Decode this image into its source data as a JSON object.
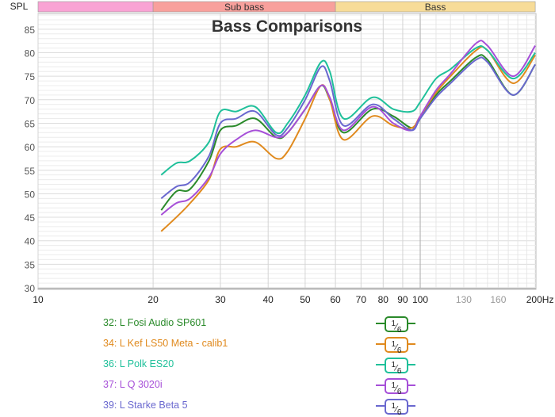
{
  "chart_data": {
    "type": "line",
    "title": "Bass Comparisons",
    "ylabel": "SPL",
    "xunit": "Hz",
    "xscale": "log",
    "xlim": [
      10,
      200
    ],
    "ylim": [
      30,
      88
    ],
    "grid": true,
    "x_ticks": [
      {
        "v": 10,
        "label": "10",
        "muted": false
      },
      {
        "v": 20,
        "label": "20",
        "muted": false
      },
      {
        "v": 30,
        "label": "30",
        "muted": false
      },
      {
        "v": 40,
        "label": "40",
        "muted": false
      },
      {
        "v": 50,
        "label": "50",
        "muted": false
      },
      {
        "v": 60,
        "label": "60",
        "muted": false
      },
      {
        "v": 70,
        "label": "70",
        "muted": false
      },
      {
        "v": 80,
        "label": "80",
        "muted": false
      },
      {
        "v": 90,
        "label": "90",
        "muted": false
      },
      {
        "v": 100,
        "label": "100",
        "muted": false
      },
      {
        "v": 130,
        "label": "130",
        "muted": true
      },
      {
        "v": 160,
        "label": "160",
        "muted": true
      },
      {
        "v": 200,
        "label": "200Hz",
        "muted": false
      }
    ],
    "y_ticks": [
      30,
      35,
      40,
      45,
      50,
      55,
      60,
      65,
      70,
      75,
      80,
      85
    ],
    "bands": [
      {
        "label": "",
        "from": 10,
        "to": 20,
        "color": "#f9a3d4"
      },
      {
        "label": "Sub bass",
        "from": 20,
        "to": 60,
        "color": "#f8a09c"
      },
      {
        "label": "Bass",
        "from": 60,
        "to": 200,
        "color": "#f7dc98"
      }
    ],
    "x": [
      21,
      23,
      25,
      28,
      30,
      33,
      37,
      42,
      45,
      50,
      55,
      58,
      63,
      75,
      85,
      95,
      100,
      110,
      120,
      140,
      150,
      175,
      200
    ],
    "series": [
      {
        "name": "32: L Fosi Audio SP601",
        "color": "#2a8a2a",
        "smoothing": "1/6",
        "values": [
          46.5,
          50.5,
          51,
          57,
          63.5,
          64.5,
          66,
          62,
          63,
          68,
          73,
          70,
          63,
          68,
          66.5,
          64,
          66,
          71,
          74,
          79,
          78.5,
          71,
          77.5
        ]
      },
      {
        "name": "34: L Kef LS50 Meta - calib1",
        "color": "#e08a1e",
        "smoothing": "1/6",
        "values": [
          42,
          45,
          48,
          53,
          59.5,
          60,
          61,
          57.5,
          59,
          66,
          73,
          70,
          61.5,
          66.5,
          64.5,
          64,
          66.5,
          71.5,
          75,
          80.5,
          80.5,
          73.5,
          79.5
        ]
      },
      {
        "name": "36: L Polk ES20",
        "color": "#1fc09a",
        "smoothing": "1/6",
        "values": [
          54,
          56.5,
          57,
          61,
          67.5,
          67.5,
          68.5,
          63,
          65,
          71,
          78,
          76,
          66,
          70.5,
          68,
          67.5,
          69.5,
          74.5,
          76.5,
          81,
          80.5,
          74.5,
          80
        ]
      },
      {
        "name": "37: L Q 3020i",
        "color": "#a64fd8",
        "smoothing": "1/6",
        "values": [
          45.5,
          48,
          49,
          53.5,
          58.5,
          61.5,
          63.5,
          62,
          63,
          68,
          73,
          70.5,
          63.5,
          68.5,
          65,
          63.5,
          66.5,
          72,
          75.5,
          82,
          81.5,
          75,
          81.5
        ]
      },
      {
        "name": "39: L Starke Beta 5",
        "color": "#6a68cf",
        "smoothing": "1/6",
        "values": [
          49,
          51.5,
          52.5,
          58,
          65,
          66,
          67.5,
          62.5,
          64,
          70,
          77,
          74,
          64.5,
          69,
          66,
          63.5,
          66,
          70.5,
          73.5,
          78.5,
          78,
          71,
          77.5
        ]
      }
    ]
  }
}
